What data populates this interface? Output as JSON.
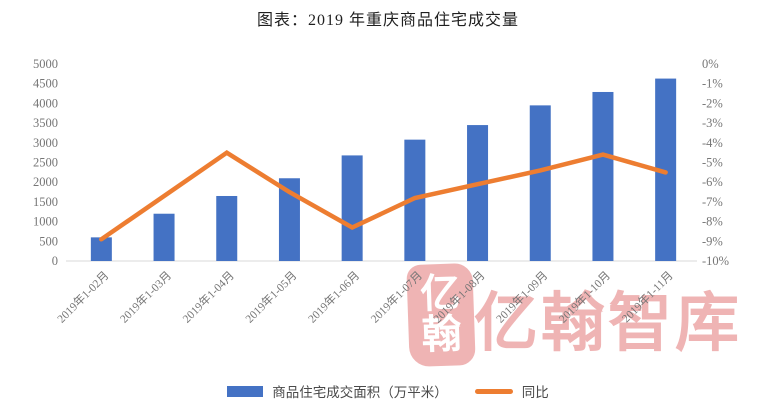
{
  "title": "图表：2019 年重庆商品住宅成交量",
  "watermark": {
    "seal_top": "亿",
    "seal_bottom": "翰",
    "text": "亿翰智库",
    "color": "#e06a6a"
  },
  "legend": {
    "bar_label": "商品住宅成交面积（万平米）",
    "line_label": "同比",
    "bar_color": "#4472C4",
    "line_color": "#ED7D31"
  },
  "chart_data": {
    "type": "bar+line combo",
    "title": "图表：2019 年重庆商品住宅成交量",
    "categories": [
      "2019年1-02月",
      "2019年1-03月",
      "2019年1-04月",
      "2019年1-05月",
      "2019年1-06月",
      "2019年1-07月",
      "2019年1-08月",
      "2019年1-09月",
      "2019年1-10月",
      "2019年1-11月"
    ],
    "series": [
      {
        "name": "商品住宅成交面积（万平米）",
        "type": "bar",
        "axis": "left",
        "color": "#4472C4",
        "values": [
          600,
          1200,
          1650,
          2100,
          2680,
          3080,
          3450,
          3950,
          4290,
          4630
        ]
      },
      {
        "name": "同比",
        "type": "line",
        "axis": "right",
        "color": "#ED7D31",
        "values": [
          -8.9,
          -6.7,
          -4.5,
          -6.5,
          -8.3,
          -6.8,
          -6.1,
          -5.4,
          -4.6,
          -5.5
        ]
      }
    ],
    "left_axis": {
      "min": 0,
      "max": 5000,
      "step": 500,
      "ticks": [
        "0",
        "500",
        "1000",
        "1500",
        "2000",
        "2500",
        "3000",
        "3500",
        "4000",
        "4500",
        "5000"
      ]
    },
    "right_axis": {
      "min": -10,
      "max": 0,
      "step": 1,
      "ticks": [
        "0%",
        "-1%",
        "-2%",
        "-3%",
        "-4%",
        "-5%",
        "-6%",
        "-7%",
        "-8%",
        "-9%",
        "-10%"
      ]
    },
    "grid": false,
    "legend_position": "bottom",
    "tick_color": "#767676",
    "axis_line_color": "#d9d9d9"
  }
}
